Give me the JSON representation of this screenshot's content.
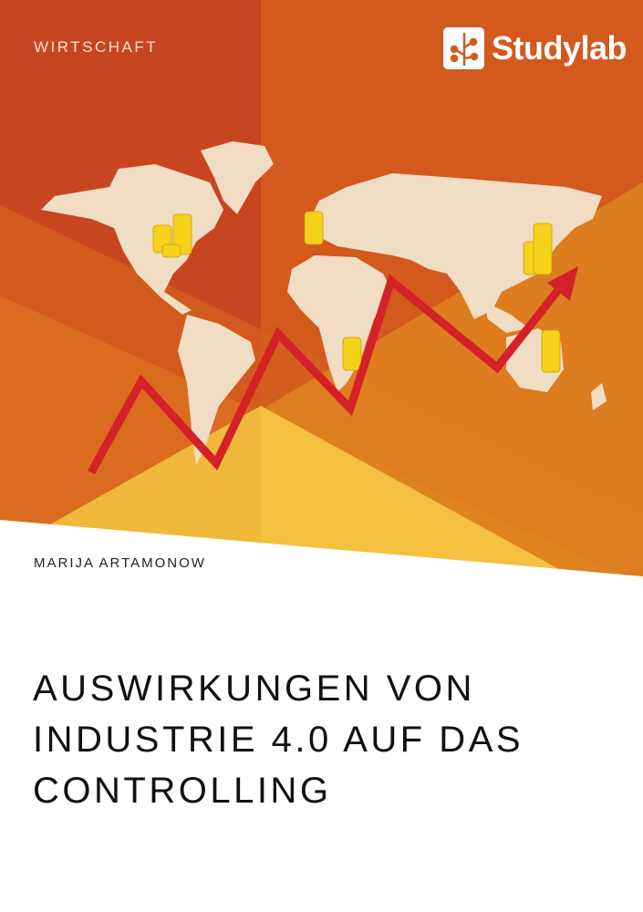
{
  "cover": {
    "category": "WIRTSCHAFT",
    "publisher": "Studylab",
    "author": "MARIJA ARTAMONOW",
    "title_lines": [
      "AUSWIRKUNGEN VON",
      "INDUSTRIE 4.0 AUF DAS",
      "CONTROLLING"
    ]
  },
  "colors": {
    "dark_orange": "#c8461f",
    "orange": "#d3591d",
    "yellow": "#f1b93b",
    "map_land": "#f1dcc4",
    "arrow_red": "#d42027",
    "coin": "#f5d11a"
  },
  "icons": {
    "logo": "studylab-tree-logo",
    "coins": "coin-stack",
    "arrow": "rising-arrow"
  }
}
